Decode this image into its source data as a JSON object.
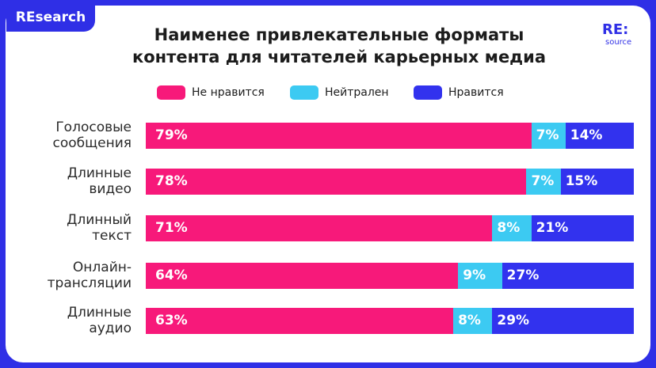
{
  "badge": "REsearch",
  "logo": {
    "main": "RE:",
    "sub": "source"
  },
  "chart_data": {
    "type": "stacked-bar-horizontal",
    "title": "Наименее привлекательные форматы контента для читателей карьерных медиа",
    "categories": [
      "Голосовые сообщения",
      "Длинные видео",
      "Длинный текст",
      "Онлайн-трансляции",
      "Длинные аудио"
    ],
    "xlim": [
      0,
      100
    ],
    "legend": "top",
    "series": [
      {
        "name": "Не нравится",
        "color": "#f7197a",
        "values": [
          79,
          78,
          71,
          64,
          63
        ],
        "value_labels": [
          "79%",
          "78%",
          "71%",
          "64%",
          "63%"
        ]
      },
      {
        "name": "Нейтрален",
        "color": "#3ccaf2",
        "values": [
          7,
          7,
          8,
          9,
          8
        ],
        "value_labels": [
          "7%",
          "7%",
          "8%",
          "9%",
          "8%"
        ]
      },
      {
        "name": "Нравится",
        "color": "#3232ee",
        "values": [
          14,
          15,
          21,
          27,
          29
        ],
        "value_labels": [
          "14%",
          "15%",
          "21%",
          "27%",
          "29%"
        ]
      }
    ]
  }
}
